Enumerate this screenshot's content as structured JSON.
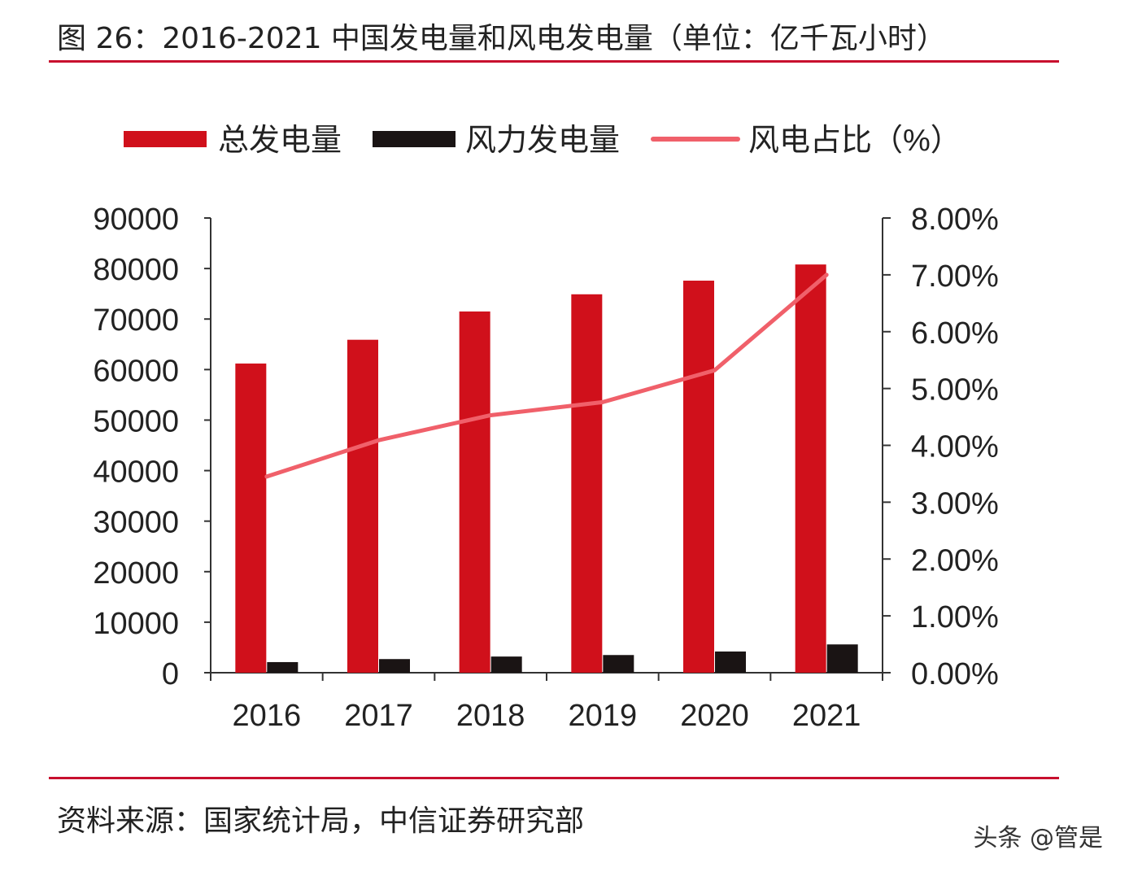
{
  "title": "图 26：2016-2021 中国发电量和风电发电量（单位：亿千瓦小时）",
  "source": "资料来源：国家统计局，中信证券研究部",
  "watermark": "头条 @管是",
  "chart_data": {
    "type": "bar",
    "categories": [
      "2016",
      "2017",
      "2018",
      "2019",
      "2020",
      "2021"
    ],
    "series": [
      {
        "name": "总发电量",
        "type": "bar",
        "axis": "left",
        "color": "#d0101b",
        "values": [
          61200,
          65900,
          71500,
          74900,
          77600,
          80800
        ]
      },
      {
        "name": "风力发电量",
        "type": "bar",
        "axis": "left",
        "color": "#1a1414",
        "values": [
          2100,
          2700,
          3200,
          3500,
          4200,
          5600
        ]
      },
      {
        "name": "风电占比（%）",
        "type": "line",
        "axis": "right",
        "color": "#f0606a",
        "values": [
          3.45,
          4.09,
          4.53,
          4.76,
          5.32,
          7.0
        ]
      }
    ],
    "left_axis": {
      "ylim": [
        0,
        90000
      ],
      "ticks": [
        "0",
        "10000",
        "20000",
        "30000",
        "40000",
        "50000",
        "60000",
        "70000",
        "80000",
        "90000"
      ]
    },
    "right_axis": {
      "ylim": [
        0,
        8
      ],
      "ticks": [
        "0.00%",
        "1.00%",
        "2.00%",
        "3.00%",
        "4.00%",
        "5.00%",
        "6.00%",
        "7.00%",
        "8.00%"
      ]
    },
    "legend_position": "top",
    "grid": false
  }
}
